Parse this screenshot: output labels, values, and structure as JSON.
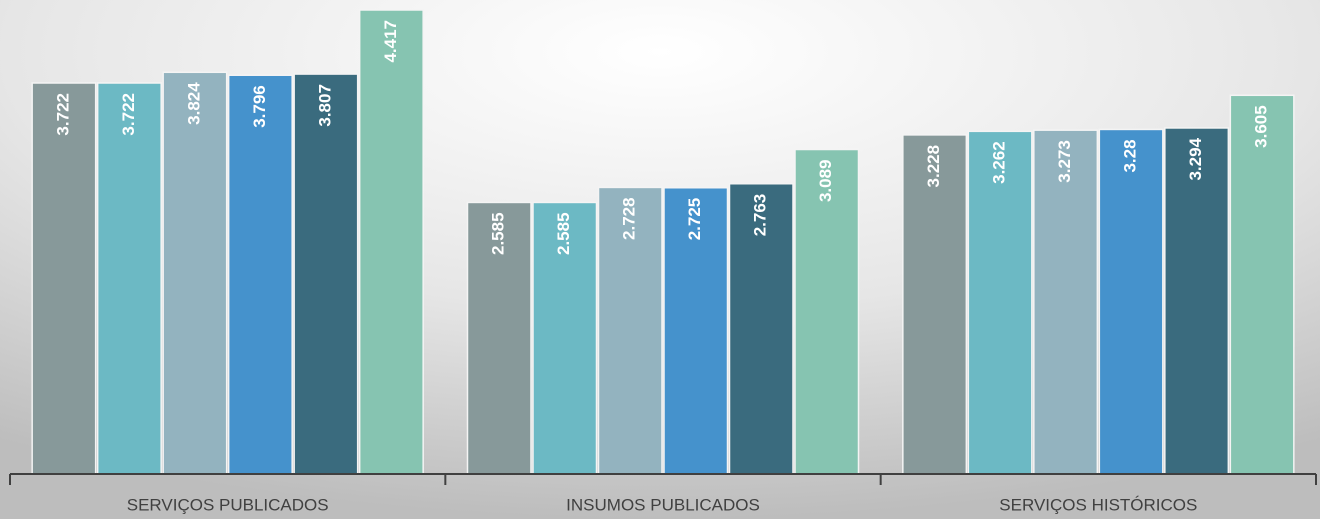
{
  "chart_data": {
    "type": "bar",
    "categories": [
      "SERVIÇOS PUBLICADOS",
      "INSUMOS PUBLICADOS",
      "SERVIÇOS HISTÓRICOS"
    ],
    "series": [
      {
        "color": "#87999a",
        "values": [
          3.722,
          2.585,
          3.228
        ]
      },
      {
        "color": "#6cb9c4",
        "values": [
          3.722,
          2.585,
          3.262
        ]
      },
      {
        "color": "#93b3bf",
        "values": [
          3.824,
          2.728,
          3.273
        ]
      },
      {
        "color": "#4592cc",
        "values": [
          3.796,
          2.725,
          3.28
        ]
      },
      {
        "color": "#3a6b7e",
        "values": [
          3.807,
          2.763,
          3.294
        ]
      },
      {
        "color": "#86c4b1",
        "values": [
          4.417,
          3.089,
          3.605
        ]
      }
    ]
  }
}
